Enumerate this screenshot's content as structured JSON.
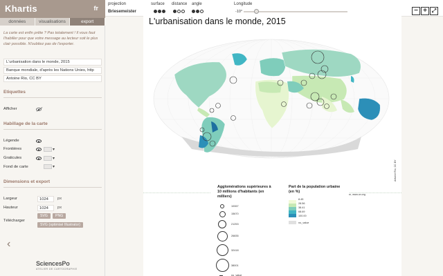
{
  "app": {
    "name": "Khartis",
    "lang": "fr"
  },
  "tabs": [
    {
      "label": "données",
      "active": false
    },
    {
      "label": "visualisations",
      "active": false
    },
    {
      "label": "export",
      "active": true
    }
  ],
  "intro": "La carte est enfin prête ? Pas totalement ! Il vous faut l'habiller pour que votre message au lecteur soit le plus clair possible. N'oubliez pas de l'exporter.",
  "fields": {
    "title": "L'urbanisation dans le monde, 2015",
    "source": "Banque mondiale, d'après les Nations Unies, http",
    "author": "Antoine Rio, CC BY"
  },
  "etiquettes": {
    "heading": "Etiquettes",
    "afficher": "Afficher"
  },
  "habillage": {
    "heading": "Habillage de la carte",
    "items": [
      "Légende",
      "Frontières",
      "Graticules",
      "Fond de carte"
    ]
  },
  "dimensions": {
    "heading": "Dimensions et export",
    "width_label": "Largeur",
    "width": "1024",
    "width_unit": "px",
    "height_label": "Hauteur",
    "height": "1024",
    "height_unit": "px",
    "download_label": "Télécharger",
    "svg": "SVG",
    "png": "PNG",
    "svg_ill": "SVG (optimisé Illustrator)"
  },
  "footer": {
    "logo": "SciencesPo",
    "logo_sub": "ATELIER DE CARTOGRAPHIE"
  },
  "toolbar": {
    "projection_label": "projection",
    "projection_value": "Briesemeister",
    "surface_label": "surface",
    "distance_label": "distance",
    "angle_label": "angle",
    "longitude_label": "Longitude",
    "longitude_value": "-10°",
    "longitude_fraction": 0.12,
    "surface_dots": 3,
    "distance_dots": 1,
    "angle_dots": 2
  },
  "map": {
    "title": "L'urbanisation dans le monde, 2015",
    "source": "Banque mondiale, d'après les Nations Unies, http://data.worldbank.org ; Nations Unies, Division Population, www.un.org",
    "credit": "Antoine Rio, CC BY"
  },
  "legend": {
    "circles_title_1": "Agglomérations supérieures à",
    "circles_title_2": "10 millions d'habitants (en",
    "circles_title_3": "milliers)",
    "circle_values": [
      "10067",
      "15670",
      "21253",
      "26835",
      "32418",
      "38001"
    ],
    "circle_novalue": "no_value",
    "colors_title_1": "Part de la population urbaine",
    "colors_title_2": "(en %)",
    "color_values": [
      "8.45",
      "28.56",
      "38.41",
      "68.69",
      "100.00"
    ],
    "color_novalue": "no_value",
    "palette": [
      "#f1f9d8",
      "#c7e9b4",
      "#7fcdbb",
      "#41b6c4",
      "#2c8fb8"
    ]
  }
}
